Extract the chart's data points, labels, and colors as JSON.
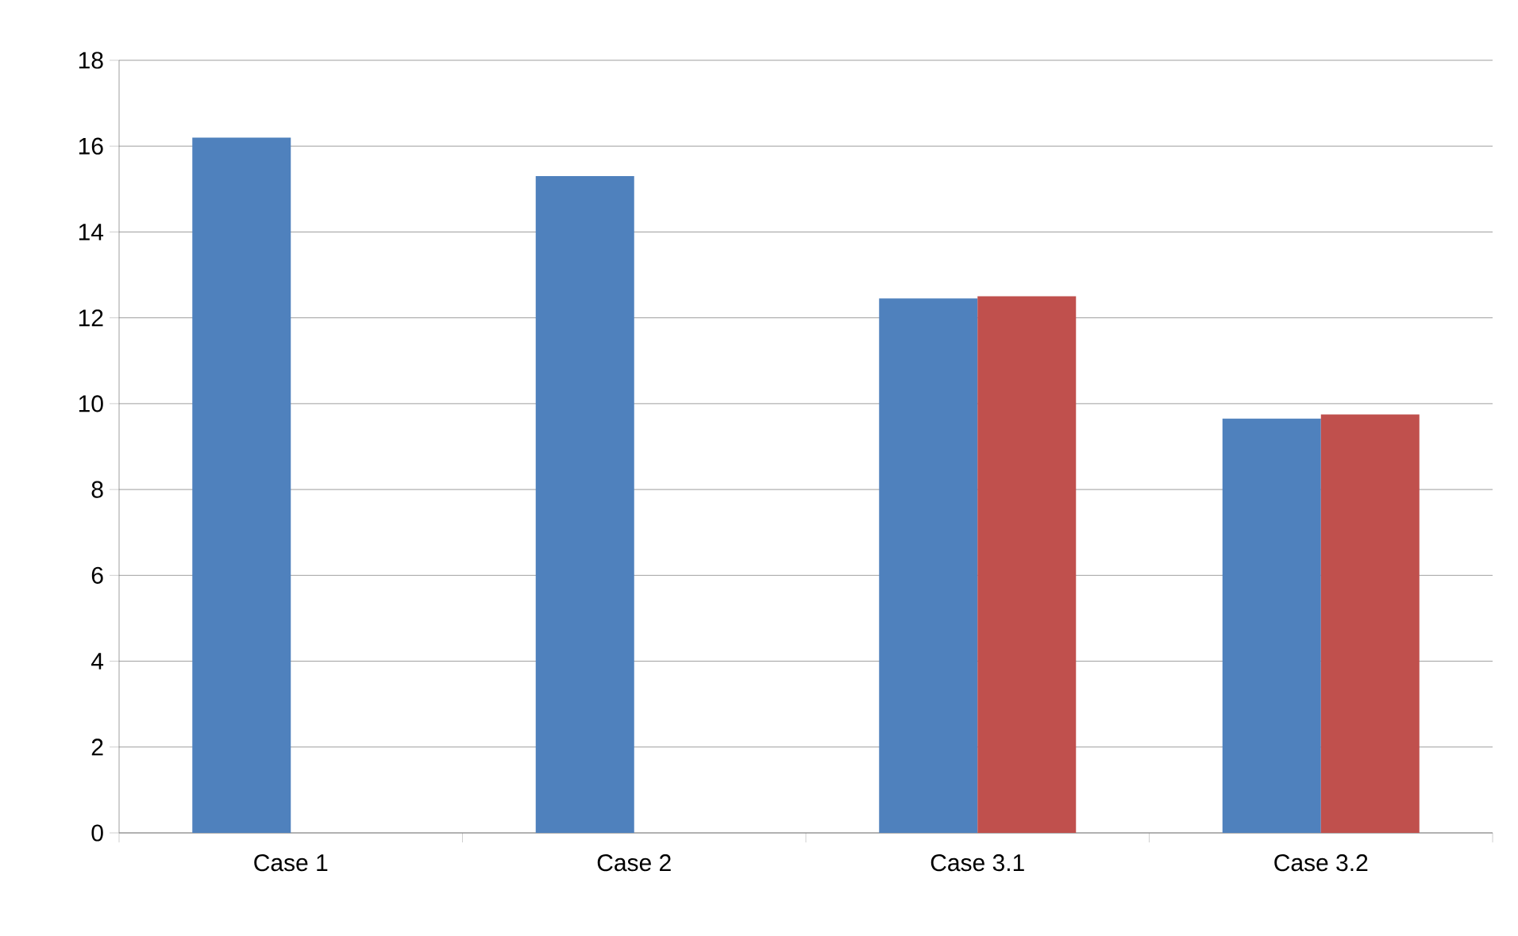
{
  "chart_data": {
    "type": "bar",
    "categories": [
      "Case 1",
      "Case 2",
      "Case 3.1",
      "Case 3.2"
    ],
    "series": [
      {
        "color": "#4f81bd",
        "values": [
          16.2,
          15.3,
          12.45,
          9.65
        ]
      },
      {
        "color": "#c0504d",
        "values": [
          null,
          null,
          12.5,
          9.75
        ]
      }
    ],
    "ylim": [
      0,
      18
    ],
    "yticks": [
      0,
      2,
      4,
      6,
      8,
      10,
      12,
      14,
      16,
      18
    ],
    "grid": "y"
  }
}
